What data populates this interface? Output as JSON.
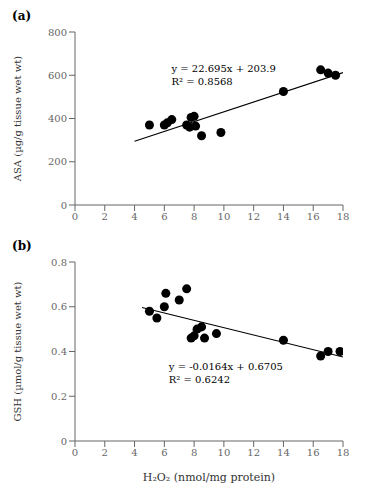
{
  "chart_data": [
    {
      "type": "scatter",
      "title": "(a)",
      "y_label": "ASA (µg/g tissue wet wt)",
      "annotations": [
        "y = 22.695x + 203.9",
        "R² = 0.8568"
      ],
      "series": [
        {
          "type": "scatter",
          "color": "#000000",
          "marker": "circle",
          "x": [
            5.0,
            6.0,
            6.2,
            6.5,
            7.5,
            7.7,
            7.8,
            8.0,
            8.1,
            8.5,
            9.8,
            14.0,
            16.5,
            17.0,
            17.5
          ],
          "values": [
            370,
            370,
            380,
            395,
            370,
            360,
            405,
            410,
            365,
            320,
            335,
            525,
            625,
            610,
            600
          ]
        },
        {
          "type": "line",
          "color": "#000000",
          "line_style": "solid",
          "x": [
            4.0,
            18.0
          ],
          "values": [
            294.68,
            612.41
          ]
        }
      ],
      "xlim": [
        0,
        18
      ],
      "ylim": [
        0,
        800
      ],
      "xticks": [
        0,
        2,
        4,
        6,
        8,
        10,
        12,
        14,
        16,
        18
      ],
      "yticks": [
        0,
        200,
        400,
        600,
        800
      ],
      "grid": false
    },
    {
      "type": "scatter",
      "title": "(b)",
      "x_label": "H₂O₂ (nmol/mg protein)",
      "y_label": "GSH (µmol/g tissue wet wt)",
      "annotations": [
        "y = -0.0164x + 0.6705",
        "R² = 0.6242"
      ],
      "series": [
        {
          "type": "scatter",
          "color": "#000000",
          "marker": "circle",
          "x": [
            5.0,
            5.5,
            6.0,
            6.1,
            7.0,
            7.5,
            7.8,
            8.0,
            8.2,
            8.5,
            8.7,
            9.5,
            14.0,
            16.5,
            17.0,
            17.8
          ],
          "values": [
            0.58,
            0.55,
            0.6,
            0.66,
            0.63,
            0.68,
            0.46,
            0.47,
            0.5,
            0.51,
            0.46,
            0.48,
            0.45,
            0.38,
            0.4,
            0.4
          ]
        },
        {
          "type": "line",
          "color": "#000000",
          "line_style": "solid",
          "x": [
            4.5,
            18.0
          ],
          "values": [
            0.5967,
            0.3753
          ]
        }
      ],
      "xlim": [
        0,
        18
      ],
      "ylim": [
        0,
        0.8
      ],
      "xticks": [
        0,
        2,
        4,
        6,
        8,
        10,
        12,
        14,
        16,
        18
      ],
      "yticks": [
        0,
        0.2,
        0.4,
        0.6,
        0.8
      ],
      "grid": false
    }
  ]
}
